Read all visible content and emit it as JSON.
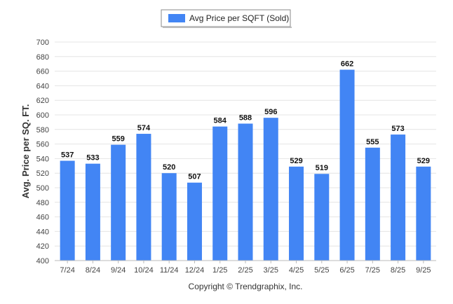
{
  "chart_data": {
    "type": "bar",
    "categories": [
      "7/24",
      "8/24",
      "9/24",
      "10/24",
      "11/24",
      "12/24",
      "1/25",
      "2/25",
      "3/25",
      "4/25",
      "5/25",
      "6/25",
      "7/25",
      "8/25",
      "9/25"
    ],
    "series": [
      {
        "name": "Avg Price per SQFT (Sold)",
        "values": [
          537,
          533,
          559,
          574,
          520,
          507,
          584,
          588,
          596,
          529,
          519,
          662,
          555,
          573,
          529
        ],
        "color": "#4285F4"
      }
    ],
    "title": "",
    "xlabel": "",
    "ylabel": "Avg. Price per SQ. FT.",
    "ylim": [
      400,
      700
    ],
    "yticks": [
      400,
      420,
      440,
      460,
      480,
      500,
      520,
      540,
      560,
      580,
      600,
      620,
      640,
      660,
      680,
      700
    ],
    "grid": true,
    "legend_position": "top-center",
    "data_labels": true
  },
  "footer": {
    "copyright": "Copyright © Trendgraphix, Inc."
  }
}
